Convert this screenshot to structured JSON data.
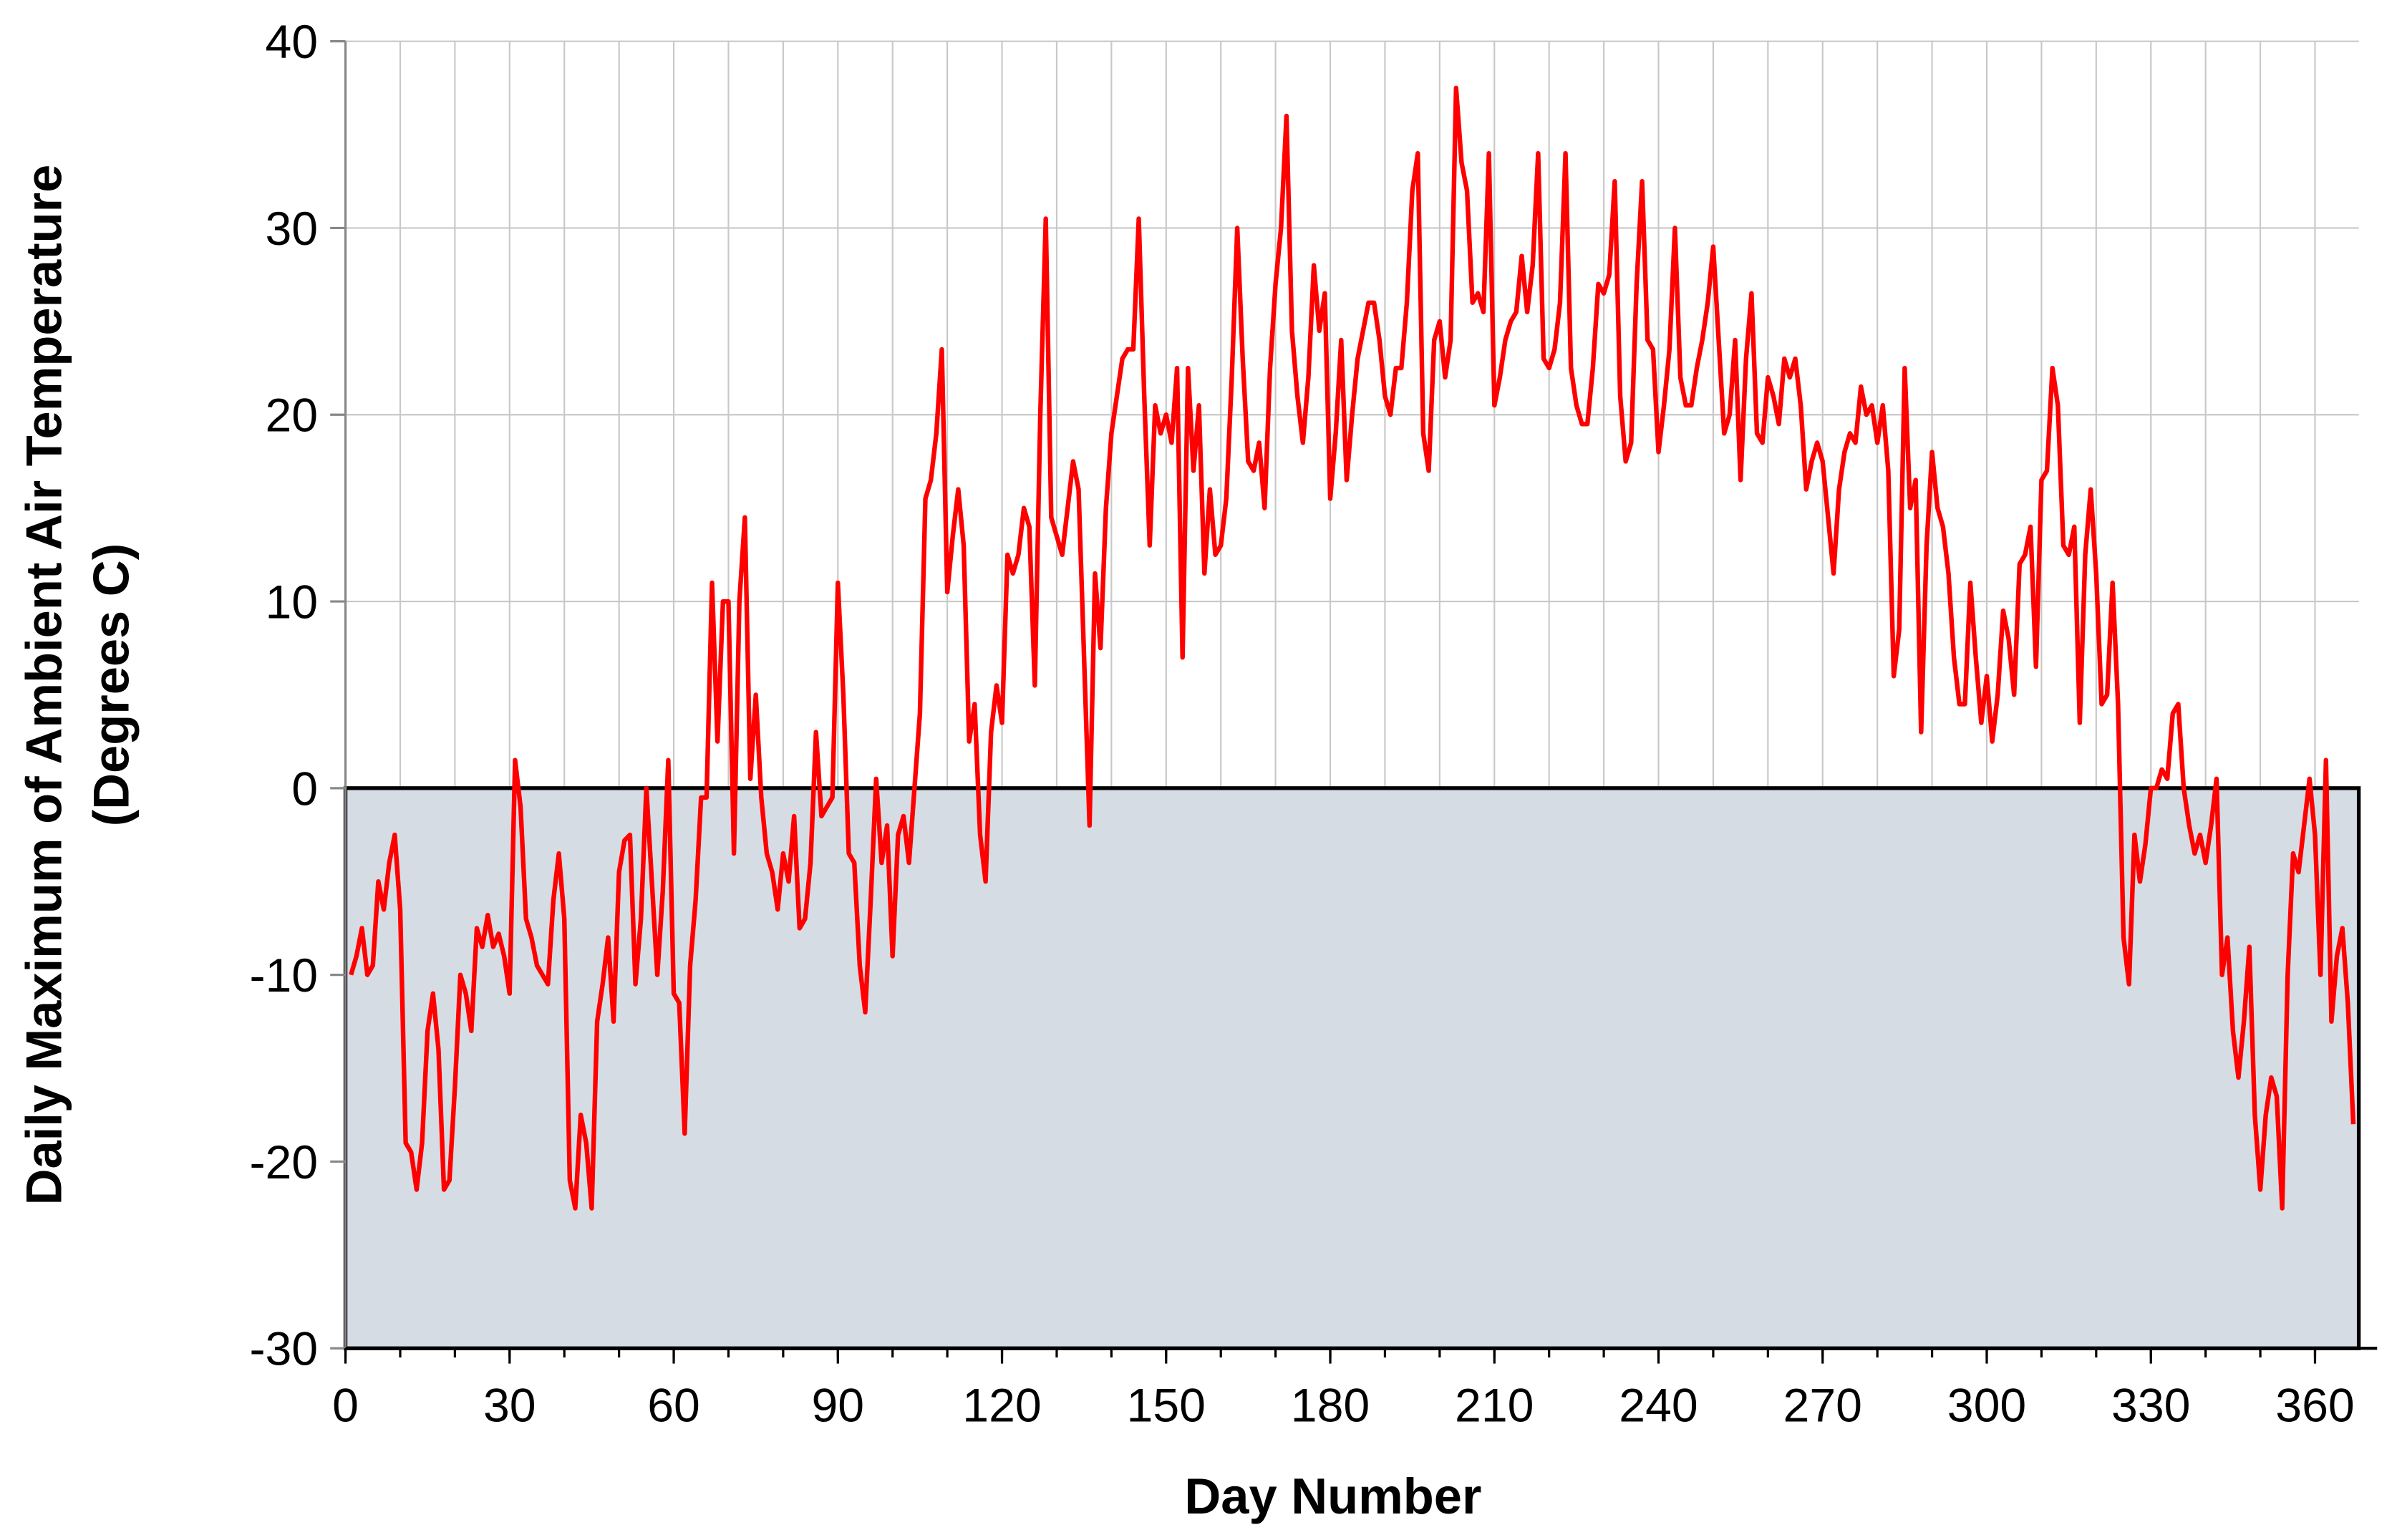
{
  "chart_data": {
    "type": "line",
    "xlabel": "Day Number",
    "ylabel": [
      "Daily Maximum of Ambient Air Temperature",
      "(Degrees C)"
    ],
    "color": "#ff0000",
    "xlim": [
      0,
      368
    ],
    "ylim": [
      -30,
      40
    ],
    "xticks": [
      0,
      30,
      60,
      90,
      120,
      150,
      180,
      210,
      240,
      270,
      300,
      330,
      360
    ],
    "xminor": [
      0,
      10,
      20,
      30,
      40,
      50,
      60,
      70,
      80,
      90,
      100,
      110,
      120,
      130,
      140,
      150,
      160,
      170,
      180,
      190,
      200,
      210,
      220,
      230,
      240,
      250,
      260,
      270,
      280,
      290,
      300,
      310,
      320,
      330,
      340,
      350,
      360
    ],
    "yticks": [
      -30,
      -20,
      -10,
      0,
      10,
      20,
      30,
      40
    ],
    "grid": true,
    "shade": {
      "from": -30,
      "to": 0,
      "color": "#d6dce4"
    },
    "x": [
      1,
      2,
      3,
      4,
      5,
      6,
      7,
      8,
      9,
      10,
      11,
      12,
      13,
      14,
      15,
      16,
      17,
      18,
      19,
      20,
      21,
      22,
      23,
      24,
      25,
      26,
      27,
      28,
      29,
      30,
      31,
      32,
      33,
      34,
      35,
      36,
      37,
      38,
      39,
      40,
      41,
      42,
      43,
      44,
      45,
      46,
      47,
      48,
      49,
      50,
      51,
      52,
      53,
      54,
      55,
      56,
      57,
      58,
      59,
      60,
      61,
      62,
      63,
      64,
      65,
      66,
      67,
      68,
      69,
      70,
      71,
      72,
      73,
      74,
      75,
      76,
      77,
      78,
      79,
      80,
      81,
      82,
      83,
      84,
      85,
      86,
      87,
      88,
      89,
      90,
      91,
      92,
      93,
      94,
      95,
      96,
      97,
      98,
      99,
      100,
      101,
      102,
      103,
      104,
      105,
      106,
      107,
      108,
      109,
      110,
      111,
      112,
      113,
      114,
      115,
      116,
      117,
      118,
      119,
      120,
      121,
      122,
      123,
      124,
      125,
      126,
      127,
      128,
      129,
      130,
      131,
      132,
      133,
      134,
      135,
      136,
      137,
      138,
      139,
      140,
      141,
      142,
      143,
      144,
      145,
      146,
      147,
      148,
      149,
      150,
      151,
      152,
      153,
      154,
      155,
      156,
      157,
      158,
      159,
      160,
      161,
      162,
      163,
      164,
      165,
      166,
      167,
      168,
      169,
      170,
      171,
      172,
      173,
      174,
      175,
      176,
      177,
      178,
      179,
      180,
      181,
      182,
      183,
      184,
      185,
      186,
      187,
      188,
      189,
      190,
      191,
      192,
      193,
      194,
      195,
      196,
      197,
      198,
      199,
      200,
      201,
      202,
      203,
      204,
      205,
      206,
      207,
      208,
      209,
      210,
      211,
      212,
      213,
      214,
      215,
      216,
      217,
      218,
      219,
      220,
      221,
      222,
      223,
      224,
      225,
      226,
      227,
      228,
      229,
      230,
      231,
      232,
      233,
      234,
      235,
      236,
      237,
      238,
      239,
      240,
      241,
      242,
      243,
      244,
      245,
      246,
      247,
      248,
      249,
      250,
      251,
      252,
      253,
      254,
      255,
      256,
      257,
      258,
      259,
      260,
      261,
      262,
      263,
      264,
      265,
      266,
      267,
      268,
      269,
      270,
      271,
      272,
      273,
      274,
      275,
      276,
      277,
      278,
      279,
      280,
      281,
      282,
      283,
      284,
      285,
      286,
      287,
      288,
      289,
      290,
      291,
      292,
      293,
      294,
      295,
      296,
      297,
      298,
      299,
      300,
      301,
      302,
      303,
      304,
      305,
      306,
      307,
      308,
      309,
      310,
      311,
      312,
      313,
      314,
      315,
      316,
      317,
      318,
      319,
      320,
      321,
      322,
      323,
      324,
      325,
      326,
      327,
      328,
      329,
      330,
      331,
      332,
      333,
      334,
      335,
      336,
      337,
      338,
      339,
      340,
      341,
      342,
      343,
      344,
      345,
      346,
      347,
      348,
      349,
      350,
      351,
      352,
      353,
      354,
      355,
      356,
      357,
      358,
      359,
      360,
      361,
      362,
      363,
      364,
      365,
      366,
      367
    ],
    "values": [
      -10,
      -9,
      -7.5,
      -10,
      -9.5,
      -5,
      -6.5,
      -4,
      -2.5,
      -6.5,
      -19,
      -19.5,
      -21.5,
      -19,
      -13,
      -11,
      -14,
      -21.5,
      -21,
      -16,
      -10,
      -11,
      -13,
      -7.5,
      -8.5,
      -6.8,
      -8.5,
      -7.8,
      -9,
      -11,
      1.5,
      -1,
      -7,
      -8,
      -9.5,
      -10,
      -10.5,
      -6,
      -3.5,
      -7,
      -21,
      -22.5,
      -17.5,
      -19,
      -22.5,
      -12.5,
      -10.5,
      -8,
      -12.5,
      -4.5,
      -2.8,
      -2.5,
      -10.5,
      -7,
      0,
      -5,
      -10,
      -5.5,
      1.5,
      -11,
      -11.5,
      -18.5,
      -9.5,
      -6,
      -0.5,
      -0.5,
      11,
      2.5,
      10,
      10,
      -3.5,
      10,
      14.5,
      0.5,
      5,
      -0.5,
      -3.5,
      -4.5,
      -6.5,
      -3.5,
      -5,
      -1.5,
      -7.5,
      -7,
      -4,
      3,
      -1.5,
      -1,
      -0.5,
      11,
      5,
      -3.5,
      -4,
      -9.5,
      -12,
      -6,
      0.5,
      -4,
      -2,
      -9,
      -2.5,
      -1.5,
      -4,
      0,
      4,
      15.5,
      16.5,
      19,
      23.5,
      10.5,
      13.5,
      16,
      13,
      2.5,
      4.5,
      -2.5,
      -5,
      3,
      5.5,
      3.5,
      12.5,
      11.5,
      12.5,
      15,
      14,
      5.5,
      20,
      30.5,
      14.5,
      13.5,
      12.5,
      15,
      17.5,
      16,
      7,
      -2,
      11.5,
      7.5,
      15,
      19,
      21,
      23,
      23.5,
      23.5,
      30.5,
      21,
      13,
      20.5,
      19,
      20,
      18.5,
      22.5,
      7,
      22.5,
      17,
      20.5,
      11.5,
      16,
      12.5,
      13,
      15.5,
      22,
      30,
      23,
      17.5,
      17,
      18.5,
      15,
      22.5,
      27,
      30,
      36,
      24.5,
      21,
      18.5,
      22,
      28,
      24.5,
      26.5,
      15.5,
      19,
      24,
      16.5,
      20,
      23,
      24.5,
      26,
      26,
      24,
      21,
      20,
      22.5,
      22.5,
      26,
      32,
      34,
      19,
      17,
      24,
      25,
      22,
      24,
      37.5,
      33.5,
      32,
      26,
      26.5,
      25.5,
      34,
      20.5,
      22,
      24,
      25,
      25.5,
      28.5,
      25.5,
      28,
      34,
      23,
      22.5,
      23.5,
      26,
      34,
      22.5,
      20.5,
      19.5,
      19.5,
      22.5,
      27,
      26.5,
      27.5,
      32.5,
      21,
      17.5,
      18.5,
      27,
      32.5,
      24,
      23.5,
      18,
      20.5,
      23.5,
      30,
      22,
      20.5,
      20.5,
      22.5,
      24,
      26,
      29,
      24,
      19,
      20,
      24,
      16.5,
      23,
      26.5,
      19,
      18.5,
      22,
      21,
      19.5,
      23,
      22,
      23,
      20.5,
      16,
      17.5,
      18.5,
      17.5,
      14.5,
      11.5,
      16,
      18,
      19,
      18.5,
      21.5,
      20,
      20.5,
      18.5,
      20.5,
      17,
      6,
      8.5,
      22.5,
      15,
      16.5,
      3,
      13,
      18,
      15,
      14,
      11.5,
      7,
      4.5,
      4.5,
      11,
      7,
      3.5,
      6,
      2.5,
      5,
      9.5,
      8,
      5,
      12,
      12.5,
      14,
      6.5,
      16.5,
      17,
      22.5,
      20.5,
      13,
      12.5,
      14,
      3.5,
      12.5,
      16,
      11.5,
      4.5,
      5,
      11,
      4.5,
      -8,
      -10.5,
      -2.5,
      -5,
      -3,
      0,
      0,
      1,
      0.5,
      4,
      4.5,
      0,
      -2,
      -3.5,
      -2.5,
      -4,
      -2,
      0.5,
      -10,
      -8,
      -13,
      -15.5,
      -12.5,
      -8.5,
      -17.5,
      -21.5,
      -17.5,
      -15.5,
      -16.5,
      -22.5,
      -10,
      -3.5,
      -4.5,
      -2,
      0.5,
      -2.5,
      -10,
      1.5,
      -12.5,
      -9,
      -7.5,
      -11.5,
      -18
    ]
  }
}
